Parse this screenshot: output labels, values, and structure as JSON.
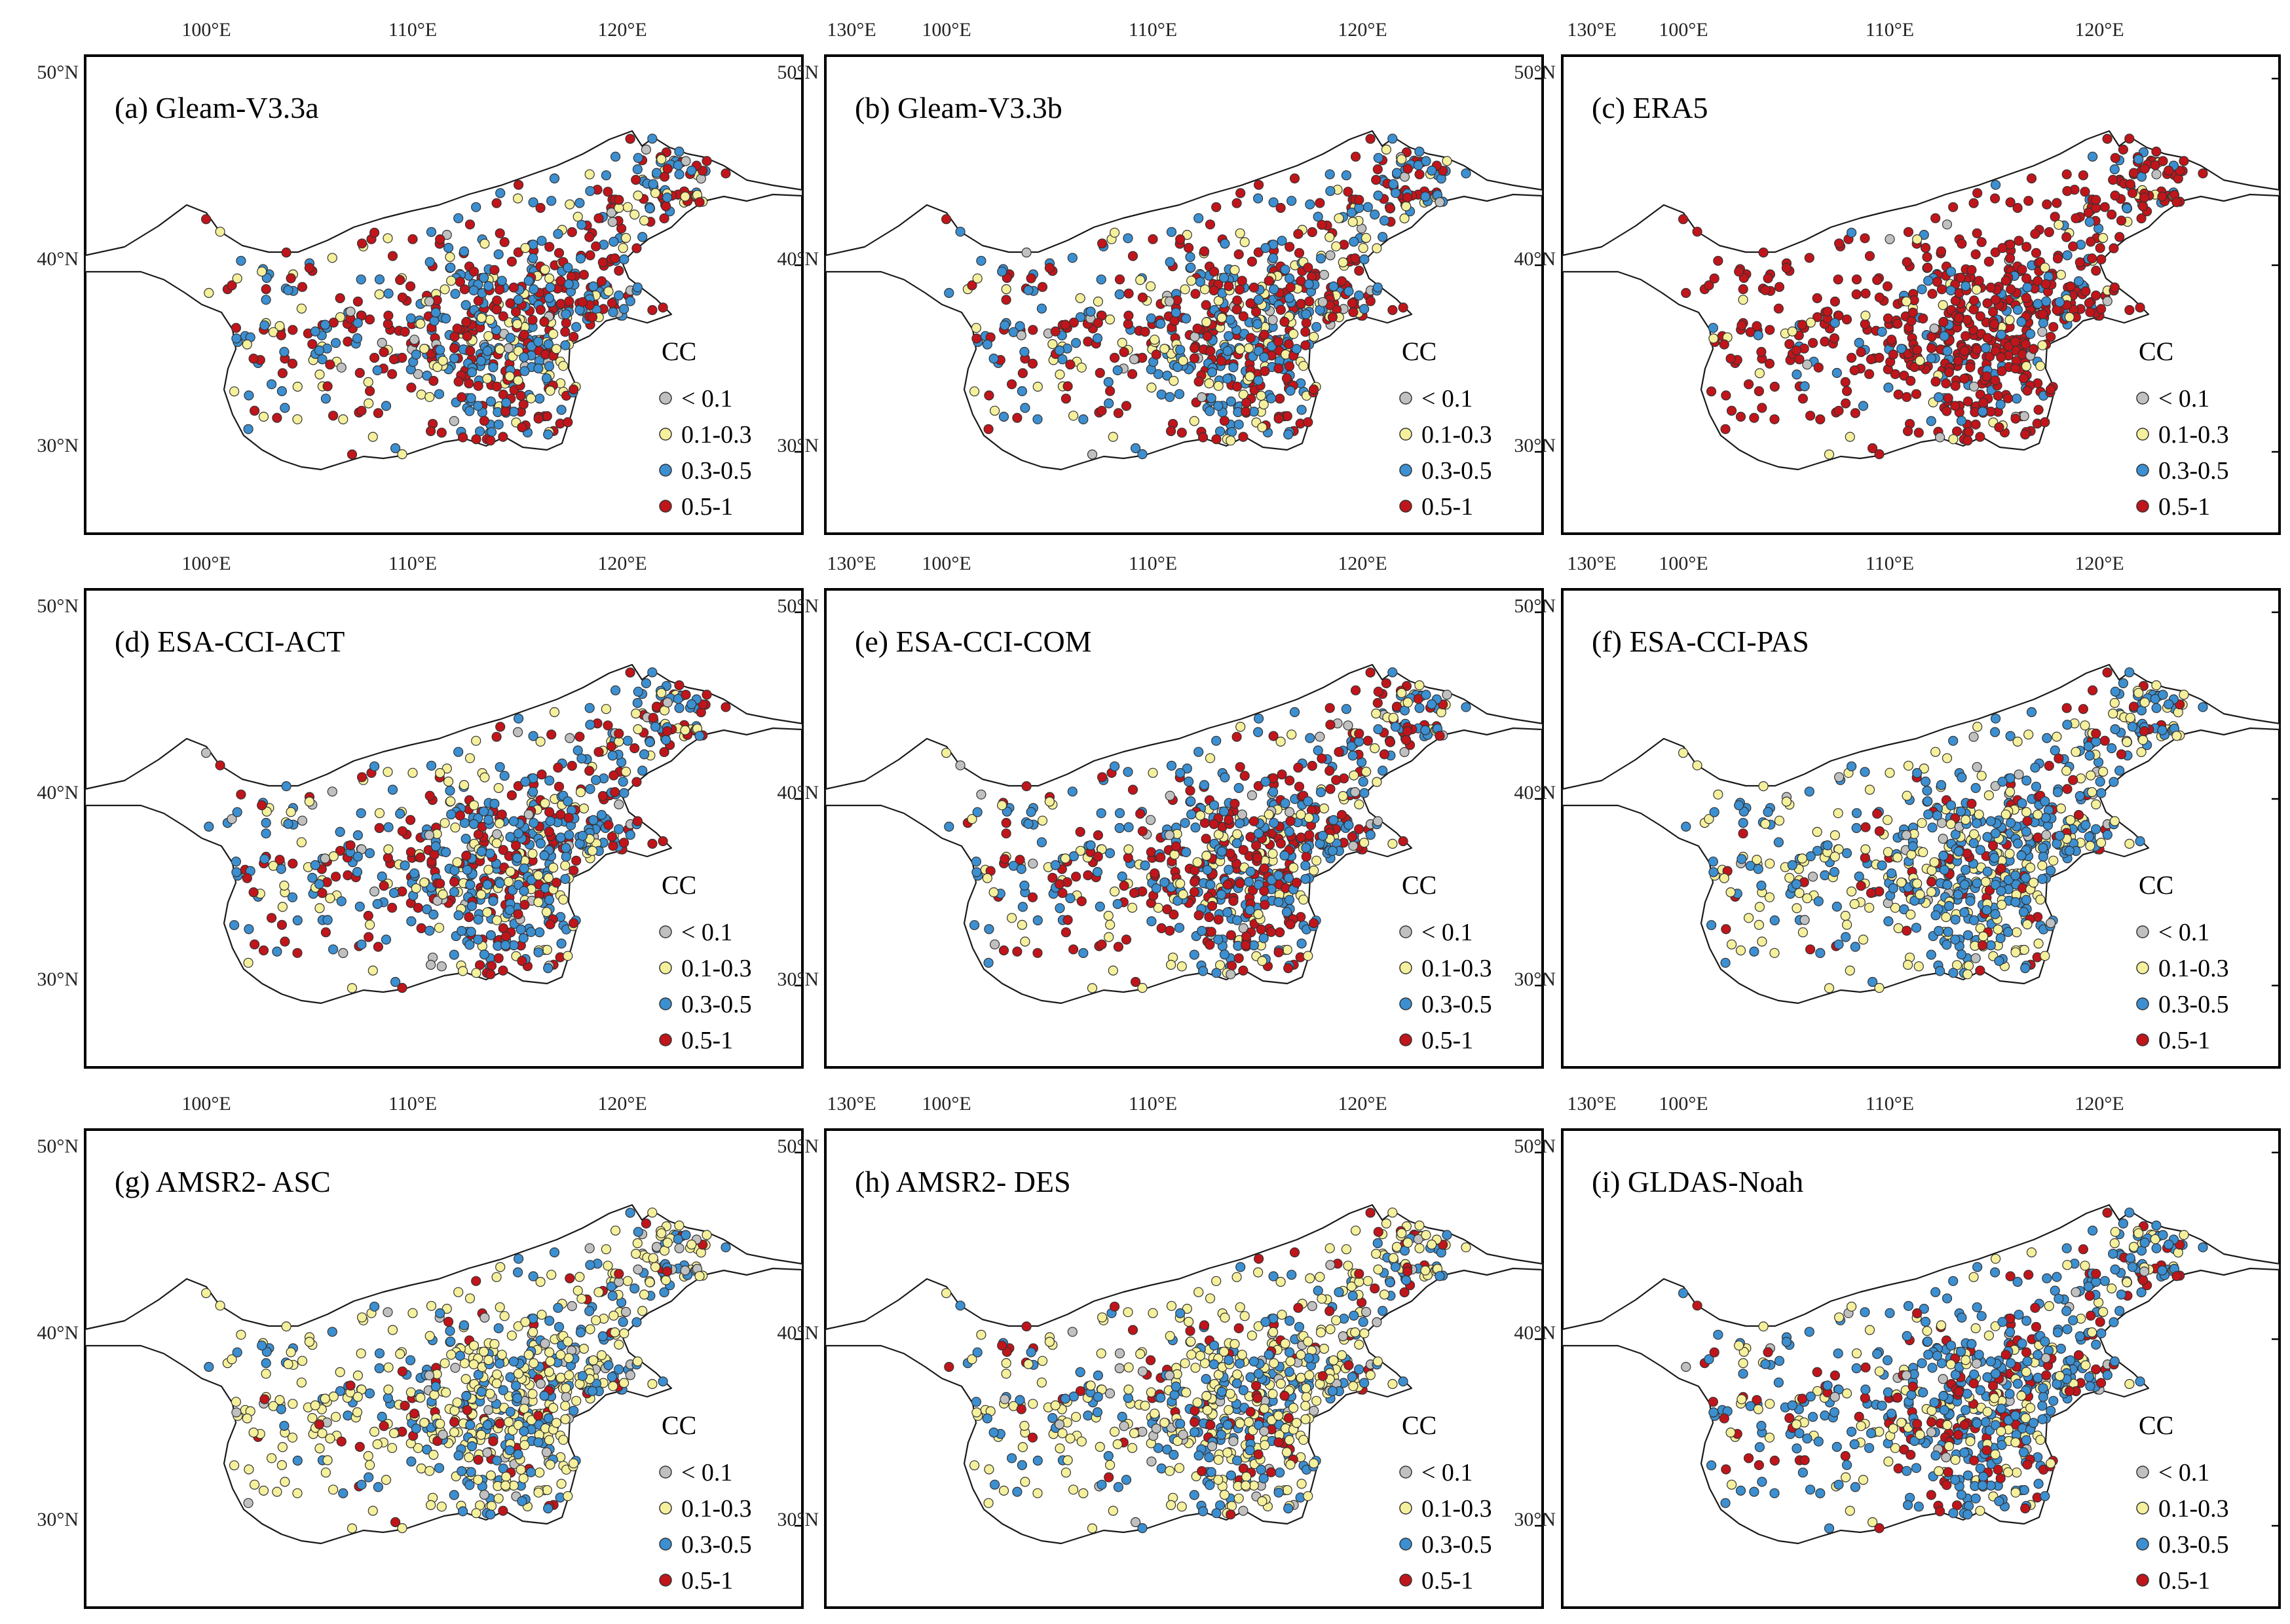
{
  "lon_labels": [
    "100°E",
    "110°E",
    "120°E",
    "130°E"
  ],
  "lat_labels": [
    "50°N",
    "40°N",
    "30°N"
  ],
  "legend": {
    "title": "CC",
    "entries": [
      {
        "label": "< 0.1",
        "color": "#c0c0c0"
      },
      {
        "label": "0.1-0.3",
        "color": "#f5f09b"
      },
      {
        "label": "0.3-0.5",
        "color": "#3c8fd0"
      },
      {
        "label": "0.5-1",
        "color": "#c0151b"
      }
    ]
  },
  "panels": [
    {
      "title": "(a) Gleam-V3.3a",
      "mix": [
        0.04,
        0.2,
        0.38,
        0.38
      ]
    },
    {
      "title": "(b) Gleam-V3.3b",
      "mix": [
        0.04,
        0.2,
        0.38,
        0.38
      ]
    },
    {
      "title": "(c) ERA5",
      "mix": [
        0.02,
        0.08,
        0.15,
        0.75
      ]
    },
    {
      "title": "(d) ESA-CCI-ACT",
      "mix": [
        0.04,
        0.22,
        0.42,
        0.32
      ]
    },
    {
      "title": "(e) ESA-CCI-COM",
      "mix": [
        0.04,
        0.16,
        0.4,
        0.4
      ]
    },
    {
      "title": "(f) ESA-CCI-PAS",
      "mix": [
        0.05,
        0.32,
        0.5,
        0.13
      ]
    },
    {
      "title": "(g) AMSR2- ASC",
      "mix": [
        0.08,
        0.55,
        0.3,
        0.07
      ]
    },
    {
      "title": "(h) AMSR2- DES",
      "mix": [
        0.08,
        0.5,
        0.3,
        0.12
      ]
    },
    {
      "title": "(i) GLDAS-Noah",
      "mix": [
        0.04,
        0.22,
        0.52,
        0.22
      ]
    }
  ]
}
